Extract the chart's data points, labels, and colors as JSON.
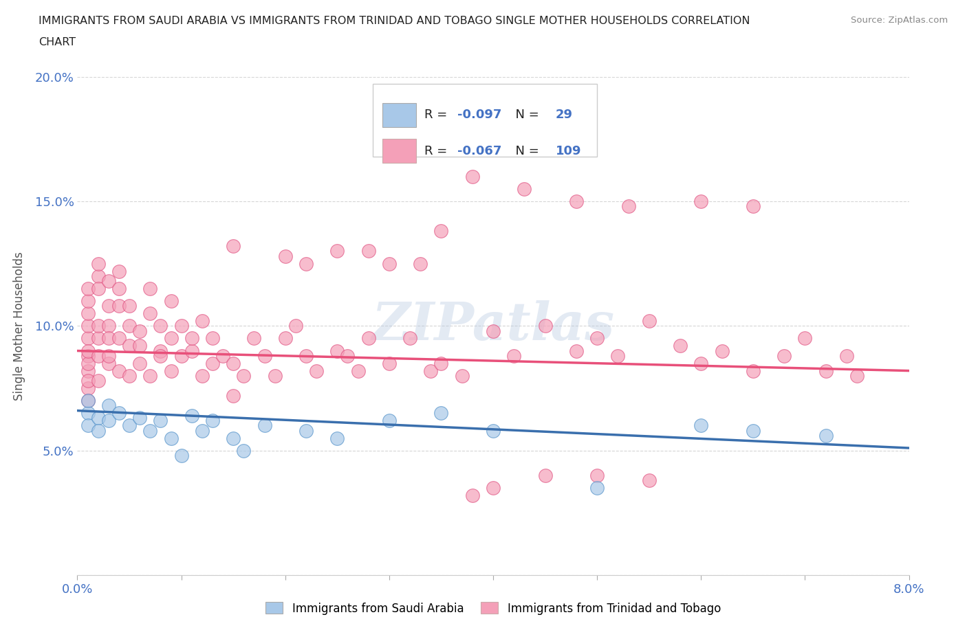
{
  "title_line1": "IMMIGRANTS FROM SAUDI ARABIA VS IMMIGRANTS FROM TRINIDAD AND TOBAGO SINGLE MOTHER HOUSEHOLDS CORRELATION",
  "title_line2": "CHART",
  "source": "Source: ZipAtlas.com",
  "ylabel": "Single Mother Households",
  "xlim": [
    0.0,
    0.08
  ],
  "ylim": [
    0.0,
    0.2
  ],
  "xtick_vals": [
    0.0,
    0.01,
    0.02,
    0.03,
    0.04,
    0.05,
    0.06,
    0.07,
    0.08
  ],
  "xticklabels": [
    "0.0%",
    "",
    "",
    "",
    "",
    "",
    "",
    "",
    "8.0%"
  ],
  "ytick_vals": [
    0.0,
    0.05,
    0.1,
    0.15,
    0.2
  ],
  "yticklabels": [
    "",
    "5.0%",
    "10.0%",
    "15.0%",
    "20.0%"
  ],
  "blue_color": "#a8c8e8",
  "pink_color": "#f4a0b8",
  "blue_edge_color": "#5090c8",
  "pink_edge_color": "#e05080",
  "blue_line_color": "#3a6fad",
  "pink_line_color": "#e8507a",
  "R_blue": -0.097,
  "N_blue": 29,
  "R_pink": -0.067,
  "N_pink": 109,
  "legend_label_blue": "Immigrants from Saudi Arabia",
  "legend_label_pink": "Immigrants from Trinidad and Tobago",
  "watermark": "ZIPatlas",
  "blue_trend_y0": 0.066,
  "blue_trend_y1": 0.051,
  "pink_trend_y0": 0.09,
  "pink_trend_y1": 0.082,
  "blue_scatter_x": [
    0.001,
    0.001,
    0.001,
    0.002,
    0.002,
    0.003,
    0.003,
    0.004,
    0.005,
    0.006,
    0.007,
    0.008,
    0.009,
    0.01,
    0.011,
    0.012,
    0.013,
    0.015,
    0.016,
    0.018,
    0.022,
    0.025,
    0.03,
    0.035,
    0.04,
    0.05,
    0.06,
    0.065,
    0.072
  ],
  "blue_scatter_y": [
    0.065,
    0.06,
    0.07,
    0.063,
    0.058,
    0.068,
    0.062,
    0.065,
    0.06,
    0.063,
    0.058,
    0.062,
    0.055,
    0.048,
    0.064,
    0.058,
    0.062,
    0.055,
    0.05,
    0.06,
    0.058,
    0.055,
    0.062,
    0.065,
    0.058,
    0.035,
    0.06,
    0.058,
    0.056
  ],
  "pink_scatter_x": [
    0.001,
    0.001,
    0.001,
    0.001,
    0.001,
    0.001,
    0.001,
    0.001,
    0.001,
    0.001,
    0.001,
    0.001,
    0.002,
    0.002,
    0.002,
    0.002,
    0.002,
    0.002,
    0.002,
    0.003,
    0.003,
    0.003,
    0.003,
    0.003,
    0.003,
    0.004,
    0.004,
    0.004,
    0.004,
    0.004,
    0.005,
    0.005,
    0.005,
    0.005,
    0.006,
    0.006,
    0.006,
    0.007,
    0.007,
    0.007,
    0.008,
    0.008,
    0.008,
    0.009,
    0.009,
    0.009,
    0.01,
    0.01,
    0.011,
    0.011,
    0.012,
    0.012,
    0.013,
    0.013,
    0.014,
    0.015,
    0.015,
    0.016,
    0.017,
    0.018,
    0.019,
    0.02,
    0.021,
    0.022,
    0.023,
    0.025,
    0.026,
    0.027,
    0.028,
    0.03,
    0.032,
    0.034,
    0.035,
    0.037,
    0.04,
    0.042,
    0.045,
    0.048,
    0.05,
    0.052,
    0.055,
    0.058,
    0.06,
    0.062,
    0.065,
    0.068,
    0.07,
    0.072,
    0.074,
    0.075,
    0.038,
    0.043,
    0.048,
    0.053,
    0.035,
    0.028,
    0.033,
    0.02,
    0.015,
    0.022,
    0.025,
    0.03,
    0.06,
    0.065,
    0.05,
    0.055,
    0.04,
    0.045,
    0.038
  ],
  "pink_scatter_y": [
    0.095,
    0.088,
    0.082,
    0.1,
    0.105,
    0.075,
    0.07,
    0.11,
    0.085,
    0.078,
    0.09,
    0.115,
    0.12,
    0.095,
    0.088,
    0.125,
    0.1,
    0.115,
    0.078,
    0.118,
    0.108,
    0.085,
    0.1,
    0.095,
    0.088,
    0.122,
    0.108,
    0.095,
    0.115,
    0.082,
    0.108,
    0.092,
    0.08,
    0.1,
    0.098,
    0.085,
    0.092,
    0.105,
    0.115,
    0.08,
    0.09,
    0.1,
    0.088,
    0.11,
    0.095,
    0.082,
    0.088,
    0.1,
    0.09,
    0.095,
    0.08,
    0.102,
    0.085,
    0.095,
    0.088,
    0.072,
    0.085,
    0.08,
    0.095,
    0.088,
    0.08,
    0.095,
    0.1,
    0.088,
    0.082,
    0.09,
    0.088,
    0.082,
    0.095,
    0.085,
    0.095,
    0.082,
    0.085,
    0.08,
    0.098,
    0.088,
    0.1,
    0.09,
    0.095,
    0.088,
    0.102,
    0.092,
    0.085,
    0.09,
    0.082,
    0.088,
    0.095,
    0.082,
    0.088,
    0.08,
    0.16,
    0.155,
    0.15,
    0.148,
    0.138,
    0.13,
    0.125,
    0.128,
    0.132,
    0.125,
    0.13,
    0.125,
    0.15,
    0.148,
    0.04,
    0.038,
    0.035,
    0.04,
    0.032
  ]
}
